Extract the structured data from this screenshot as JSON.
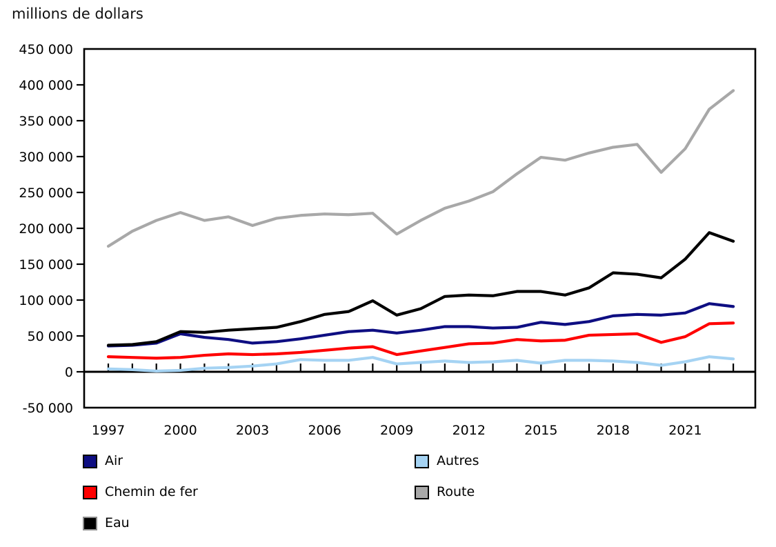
{
  "title": "millions de dollars",
  "chart_data": {
    "type": "line",
    "title": "millions de dollars",
    "xlabel": "",
    "ylabel": "millions de dollars",
    "ylim": [
      -50000,
      450000
    ],
    "grid": false,
    "legend_position": "bottom",
    "x": [
      1997,
      1998,
      1999,
      2000,
      2001,
      2002,
      2003,
      2004,
      2005,
      2006,
      2007,
      2008,
      2009,
      2010,
      2011,
      2012,
      2013,
      2014,
      2015,
      2016,
      2017,
      2018,
      2019,
      2020,
      2021,
      2022,
      2023
    ],
    "x_tick_labels": [
      "1997",
      "2000",
      "2003",
      "2006",
      "2009",
      "2012",
      "2015",
      "2018",
      "2021"
    ],
    "y_tick_values": [
      450000,
      400000,
      350000,
      300000,
      250000,
      200000,
      150000,
      100000,
      50000,
      0,
      -50000
    ],
    "y_tick_labels": [
      "450 000",
      "400 000",
      "350 000",
      "300 000",
      "250 000",
      "200 000",
      "150 000",
      "100 000",
      "50 000",
      "0",
      "-50 000"
    ],
    "series": [
      {
        "name": "Route",
        "color": "#a8a8a8",
        "values": [
          175000,
          196000,
          211000,
          222000,
          211000,
          216000,
          204000,
          214000,
          218000,
          220000,
          219000,
          221000,
          192000,
          211000,
          228000,
          238000,
          251000,
          276000,
          299000,
          295000,
          305000,
          313000,
          317000,
          278000,
          311000,
          366000,
          392000
        ]
      },
      {
        "name": "Autres",
        "color": "#a5d3f3",
        "values": [
          4000,
          3000,
          1000,
          2000,
          5000,
          6000,
          8000,
          11000,
          17000,
          16000,
          16000,
          20000,
          11000,
          13000,
          15000,
          13000,
          14000,
          16000,
          12000,
          16000,
          16000,
          15000,
          13000,
          9000,
          14000,
          21000,
          18000
        ]
      },
      {
        "name": "Chemin de fer",
        "color": "#ff0000",
        "values": [
          21000,
          20000,
          19000,
          20000,
          23000,
          25000,
          24000,
          25000,
          27000,
          30000,
          33000,
          35000,
          24000,
          29000,
          34000,
          39000,
          40000,
          45000,
          43000,
          44000,
          51000,
          52000,
          53000,
          41000,
          49000,
          67000,
          68000
        ]
      },
      {
        "name": "Air",
        "color": "#0e0e82",
        "values": [
          36000,
          37000,
          40000,
          53000,
          48000,
          45000,
          40000,
          42000,
          46000,
          51000,
          56000,
          58000,
          54000,
          58000,
          63000,
          63000,
          61000,
          62000,
          69000,
          66000,
          70000,
          78000,
          80000,
          79000,
          82000,
          95000,
          91000
        ]
      },
      {
        "name": "Eau",
        "color": "#000000",
        "values": [
          37000,
          38000,
          42000,
          56000,
          55000,
          58000,
          60000,
          62000,
          70000,
          80000,
          84000,
          99000,
          79000,
          88000,
          105000,
          107000,
          106000,
          112000,
          112000,
          107000,
          117000,
          138000,
          136000,
          131000,
          157000,
          194000,
          182000
        ]
      }
    ]
  },
  "legend": {
    "columns": [
      {
        "items": [
          {
            "label": "Air",
            "swatch": "#0e0e82",
            "border": "#000000"
          },
          {
            "label": "Chemin de fer",
            "swatch": "#ff0000",
            "border": "#000000"
          },
          {
            "label": "Eau",
            "swatch": "#000000",
            "border": "#8c8c8c"
          }
        ]
      },
      {
        "items": [
          {
            "label": "Autres",
            "swatch": "#a5d3f3",
            "border": "#000000"
          },
          {
            "label": "Route",
            "swatch": "#a8a8a8",
            "border": "#000000"
          }
        ]
      }
    ]
  }
}
